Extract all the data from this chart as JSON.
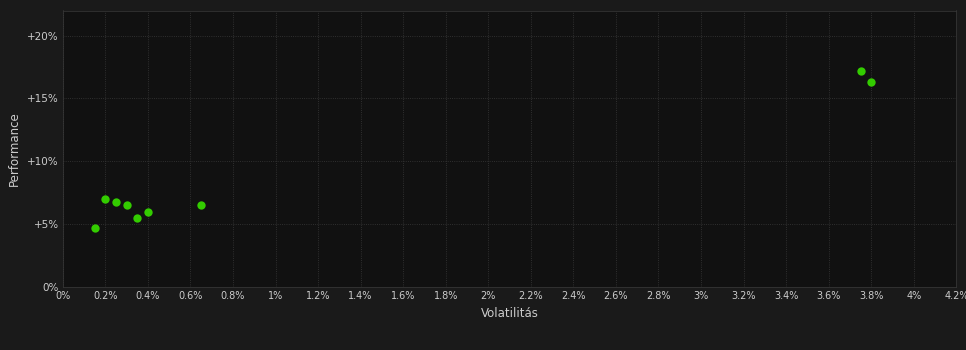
{
  "points_x": [
    0.0015,
    0.002,
    0.0025,
    0.003,
    0.0035,
    0.004,
    0.0065,
    0.0375,
    0.038
  ],
  "points_y": [
    0.047,
    0.07,
    0.068,
    0.065,
    0.055,
    0.06,
    0.065,
    0.172,
    0.163
  ],
  "point_color": "#33cc00",
  "bg_color": "#1a1a1a",
  "plot_bg_color": "#111111",
  "grid_color": "#3a3a3a",
  "text_color": "#cccccc",
  "xlabel": "Volatilitás",
  "ylabel": "Performance",
  "xlim": [
    0.0,
    0.042
  ],
  "ylim": [
    0.0,
    0.22
  ],
  "xtick_vals": [
    0.0,
    0.002,
    0.004,
    0.006,
    0.008,
    0.01,
    0.012,
    0.014,
    0.016,
    0.018,
    0.02,
    0.022,
    0.024,
    0.026,
    0.028,
    0.03,
    0.032,
    0.034,
    0.036,
    0.038,
    0.04,
    0.042
  ],
  "xtick_labels": [
    "0%",
    "0.2%",
    "0.4%",
    "0.6%",
    "0.8%",
    "1%",
    "1.2%",
    "1.4%",
    "1.6%",
    "1.8%",
    "2%",
    "2.2%",
    "2.4%",
    "2.6%",
    "2.8%",
    "3%",
    "3.2%",
    "3.4%",
    "3.6%",
    "3.8%",
    "4%",
    "4.2%"
  ],
  "ytick_vals": [
    0.0,
    0.05,
    0.1,
    0.15,
    0.2
  ],
  "ytick_labels": [
    "0%",
    "+5%",
    "+10%",
    "+15%",
    "+20%"
  ],
  "marker_size": 6,
  "fig_width": 9.66,
  "fig_height": 3.5,
  "dpi": 100
}
